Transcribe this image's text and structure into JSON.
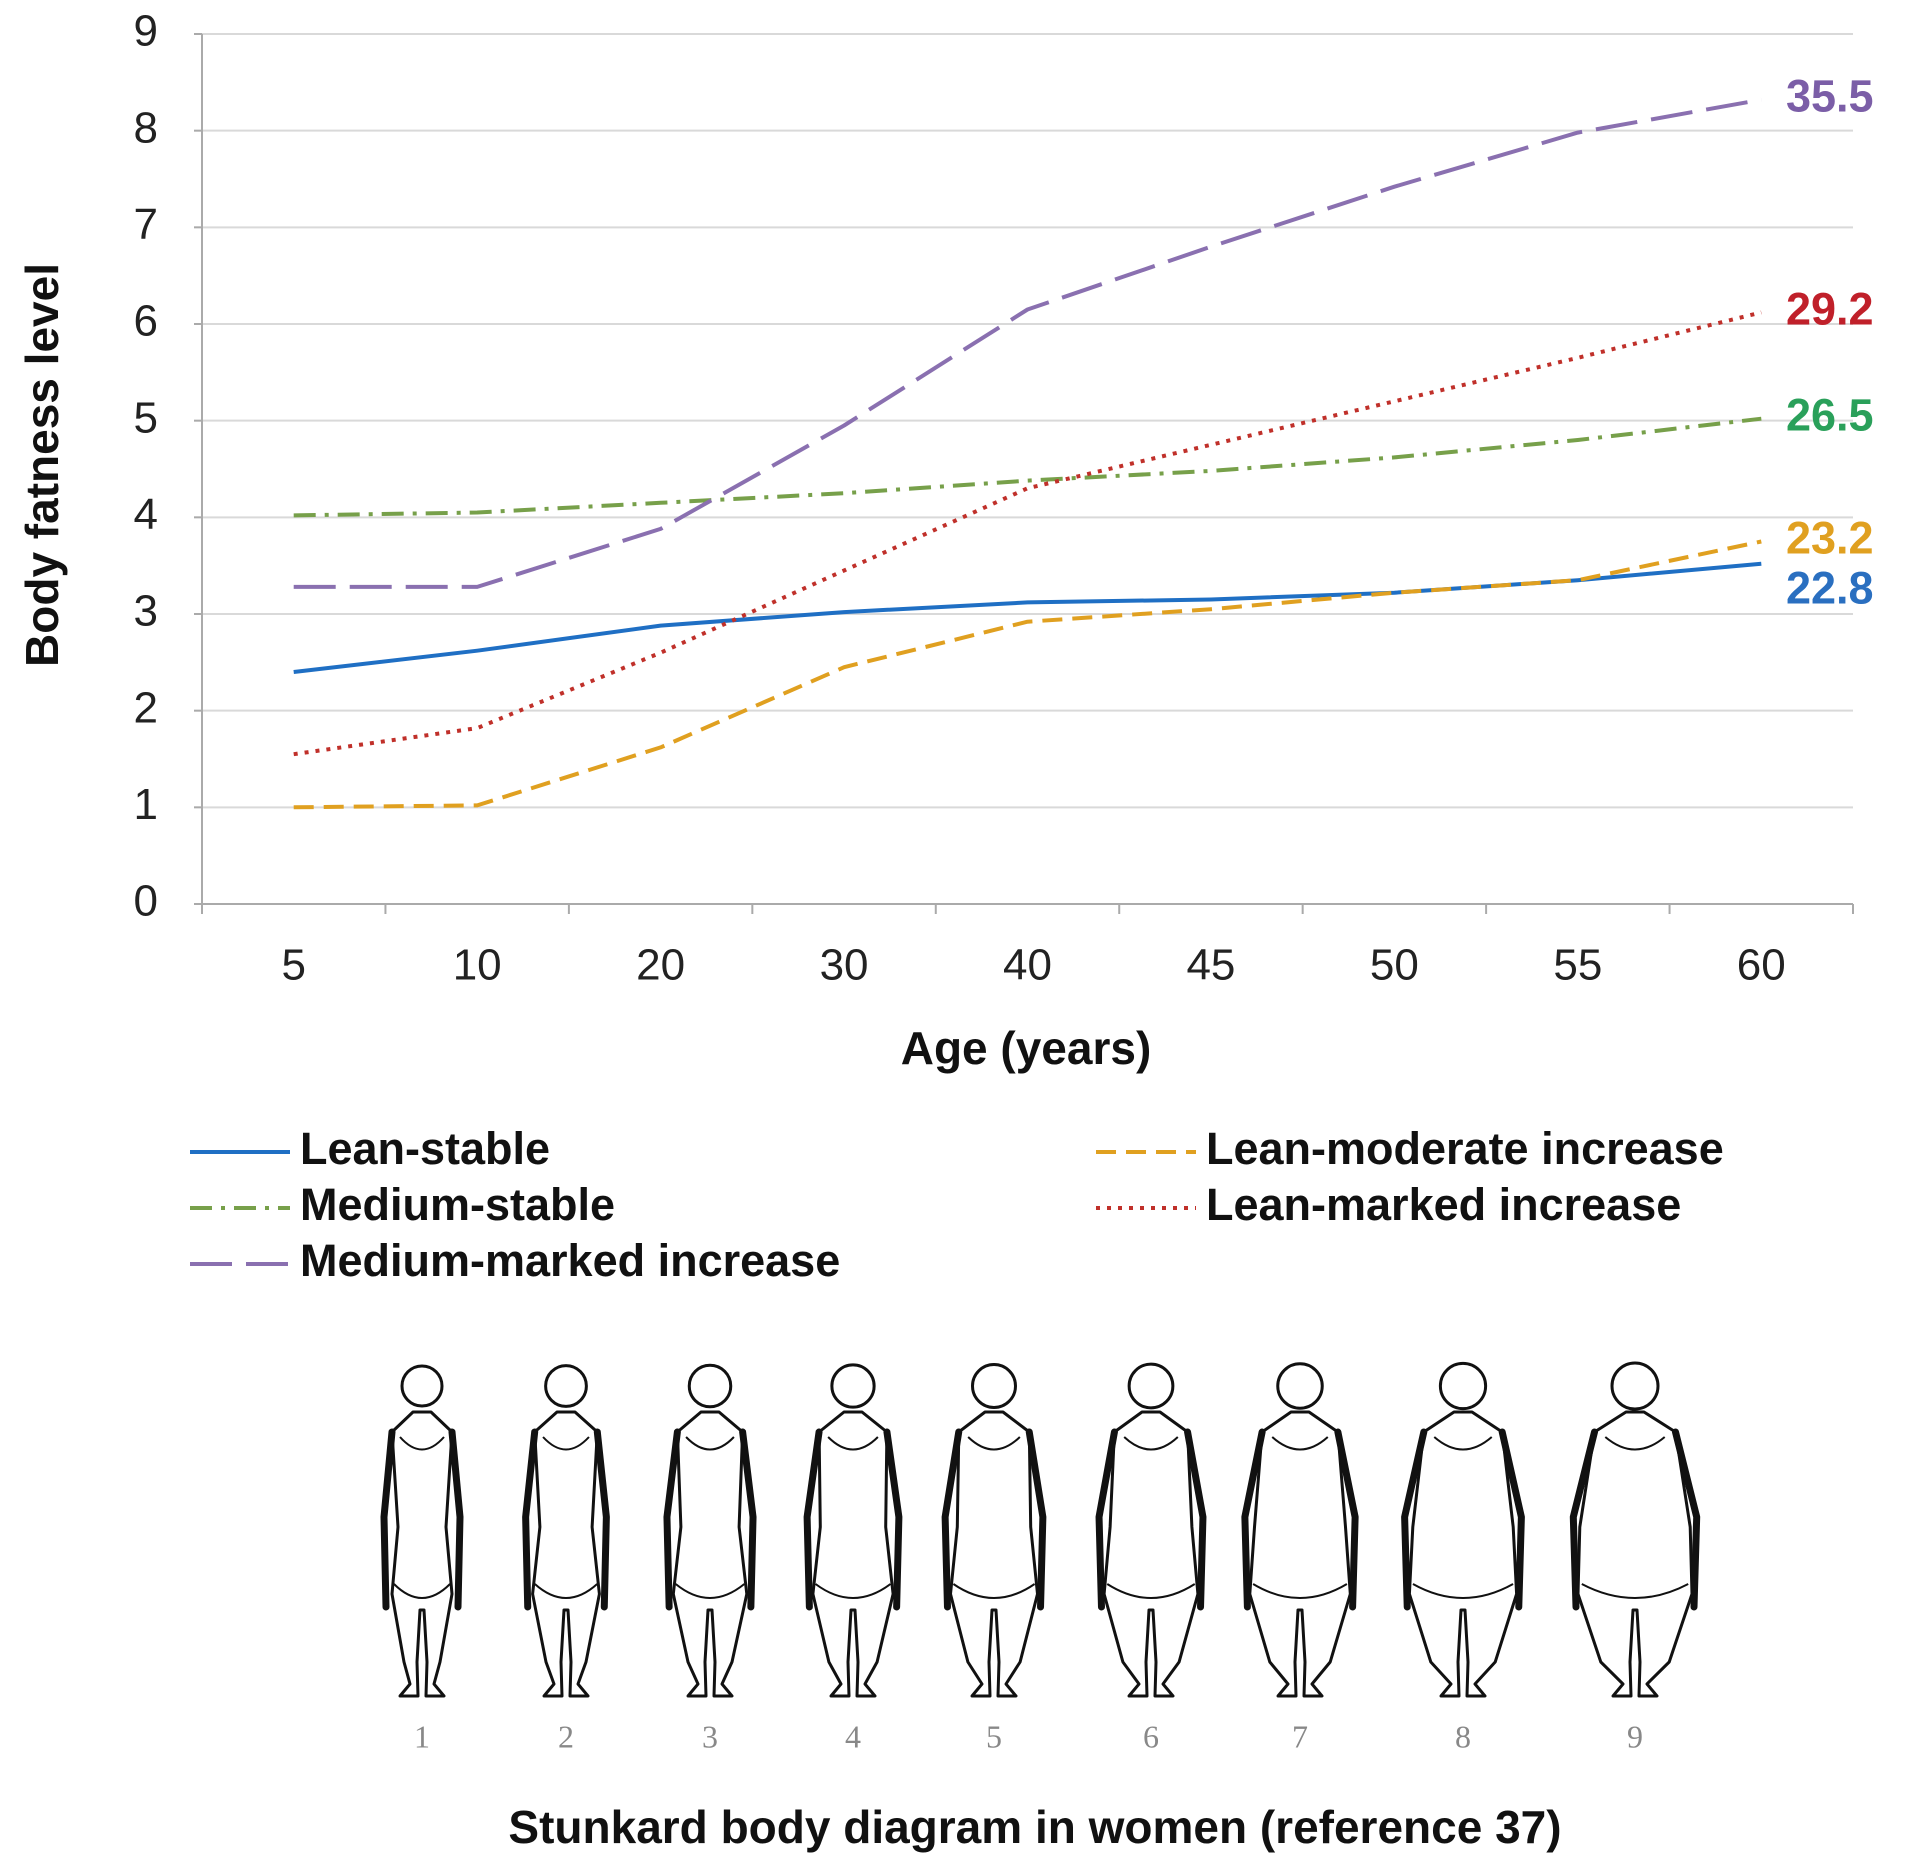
{
  "chart_data": {
    "type": "line",
    "x_label": "Age (years)",
    "y_label": "Body fatness level",
    "categories": [
      "5",
      "10",
      "20",
      "30",
      "40",
      "45",
      "50",
      "55",
      "60"
    ],
    "ylim": [
      0,
      9
    ],
    "yticks": [
      0,
      1,
      2,
      3,
      4,
      5,
      6,
      7,
      8,
      9
    ],
    "grid": true,
    "series": [
      {
        "name": "Lean-stable",
        "color": "#1f6fc4",
        "line_style": "solid",
        "end_label": "22.8",
        "end_label_color": "#2a6fc0",
        "values": [
          2.4,
          2.62,
          2.88,
          3.02,
          3.12,
          3.15,
          3.22,
          3.35,
          3.52
        ]
      },
      {
        "name": "Medium-stable",
        "color": "#77a04a",
        "line_style": "dashdot",
        "end_label": "26.5",
        "end_label_color": "#2aa05a",
        "values": [
          4.02,
          4.05,
          4.15,
          4.25,
          4.38,
          4.48,
          4.62,
          4.8,
          5.02
        ]
      },
      {
        "name": "Medium-marked increase",
        "color": "#8a70b0",
        "line_style": "longdash",
        "end_label": "35.5",
        "end_label_color": "#7b5ea7",
        "values": [
          3.28,
          3.28,
          3.88,
          4.95,
          6.15,
          6.8,
          7.42,
          7.98,
          8.32
        ]
      },
      {
        "name": "Lean-moderate increase",
        "color": "#e0a020",
        "line_style": "dashed",
        "end_label": "23.2",
        "end_label_color": "#e0a020",
        "values": [
          1.0,
          1.02,
          1.62,
          2.45,
          2.92,
          3.05,
          3.22,
          3.35,
          3.75
        ]
      },
      {
        "name": "Lean-marked increase",
        "color": "#c0302a",
        "line_style": "dotted",
        "end_label": "29.2",
        "end_label_color": "#c0202a",
        "values": [
          1.55,
          1.82,
          2.6,
          3.45,
          4.3,
          4.75,
          5.2,
          5.65,
          6.12
        ]
      }
    ]
  },
  "stunkard_diagram": {
    "labels": [
      "1",
      "2",
      "3",
      "4",
      "5",
      "6",
      "7",
      "8",
      "9"
    ],
    "caption": "Stunkard body diagram in women (reference 37)"
  }
}
